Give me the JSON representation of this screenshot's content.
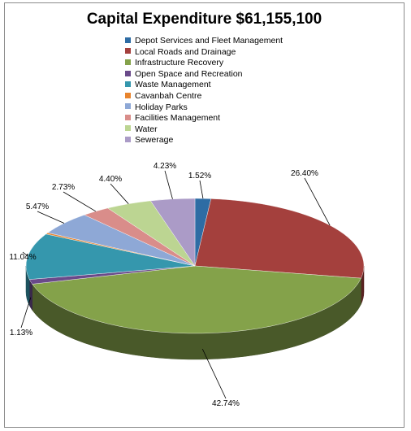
{
  "chart_data": {
    "type": "pie",
    "title": "Capital Expenditure $61,155,100",
    "categories": [
      "Depot Services and Fleet Management",
      "Local Roads and Drainage",
      "Infrastructure Recovery",
      "Open Space and Recreation",
      "Waste Management",
      "Cavanbah Centre",
      "Holiday Parks",
      "Facilities Management",
      "Water",
      "Sewerage"
    ],
    "values": [
      1.52,
      26.4,
      42.74,
      1.13,
      11.04,
      0.34,
      5.47,
      2.73,
      4.4,
      4.23
    ],
    "labels": [
      "1.52%",
      "26.40%",
      "42.74%",
      "1.13%",
      "11.04%",
      "",
      "5.47%",
      "2.73%",
      "4.40%",
      "4.23%"
    ],
    "colors": [
      "#2e6ca4",
      "#a4403d",
      "#84a24a",
      "#6a4a8a",
      "#3597ad",
      "#e8842e",
      "#8ea8d6",
      "#d98d8a",
      "#bcd592",
      "#ab9bc7"
    ],
    "legend_position": "top",
    "three_d": true
  }
}
